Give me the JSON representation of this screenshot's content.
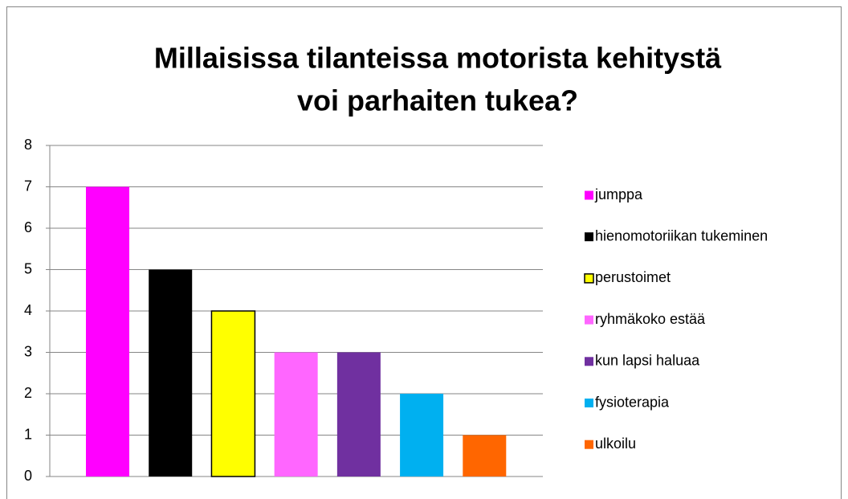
{
  "chart_data": {
    "type": "bar",
    "title": [
      "Millaisissa tilanteissa motorista kehitystä",
      "voi parhaiten tukea?"
    ],
    "series": [
      {
        "name": "jumppa",
        "color": "#ff00ff",
        "values": [
          7
        ]
      },
      {
        "name": "hienomotoriikan tukeminen",
        "color": "#000000",
        "values": [
          5
        ]
      },
      {
        "name": "perustoimet",
        "color": "#ffff00",
        "edgecolor": "#000000",
        "values": [
          4
        ]
      },
      {
        "name": "ryhmäkoko estää",
        "color": "#ff66ff",
        "values": [
          3
        ]
      },
      {
        "name": "kun lapsi haluaa",
        "color": "#7030a0",
        "values": [
          3
        ]
      },
      {
        "name": "fysioterapia",
        "color": "#00b0f0",
        "values": [
          2
        ]
      },
      {
        "name": "ulkoilu",
        "color": "#ff6600",
        "values": [
          1
        ]
      }
    ],
    "ylim": [
      0,
      8
    ],
    "yticks": [
      0,
      1,
      2,
      3,
      4,
      5,
      6,
      7,
      8
    ],
    "grid": true,
    "legend": "right"
  }
}
